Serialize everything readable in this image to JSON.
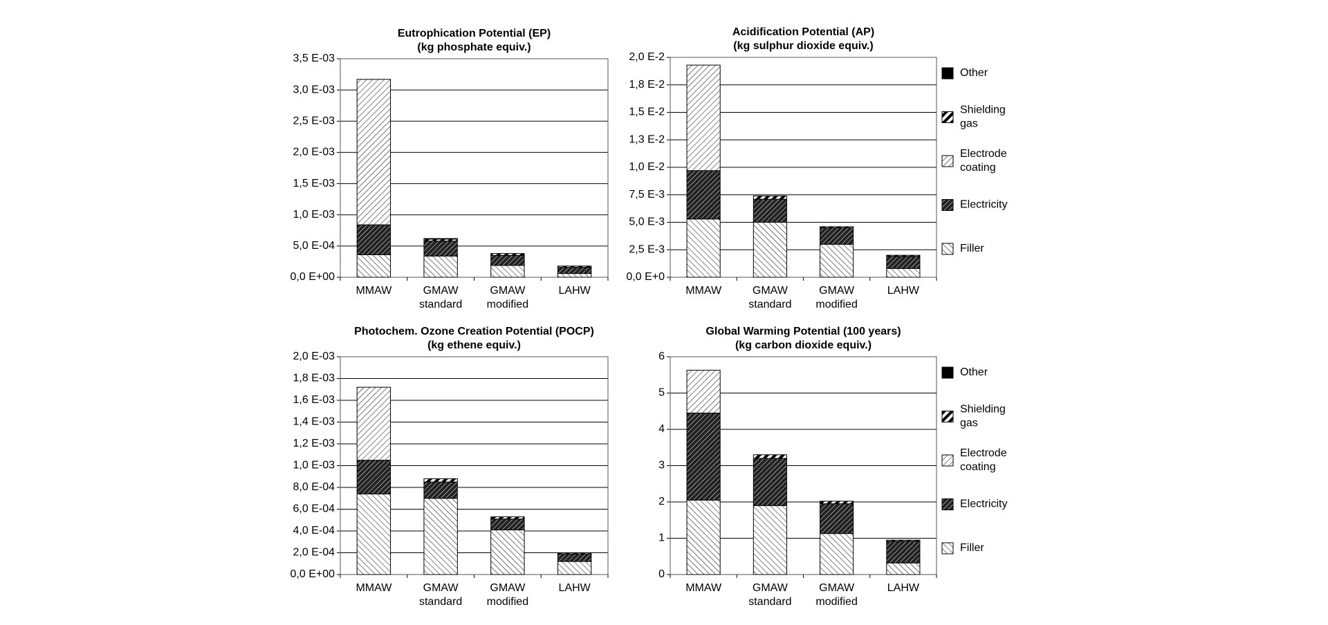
{
  "chart_data": [
    {
      "type": "bar",
      "stacked": true,
      "title": "Eutrophication Potential (EP)",
      "subtitle": "(kg phosphate equiv.)",
      "categories": [
        "MMAW",
        "GMAW standard",
        "GMAW modified",
        "LAHW"
      ],
      "ylim": [
        0,
        0.0035
      ],
      "yticks": [
        {
          "value": 0,
          "label": "0,0 E+00"
        },
        {
          "value": 0.0005,
          "label": "5,0 E-04"
        },
        {
          "value": 0.001,
          "label": "1,0 E-03"
        },
        {
          "value": 0.0015,
          "label": "1,5 E-03"
        },
        {
          "value": 0.002,
          "label": "2,0 E-03"
        },
        {
          "value": 0.0025,
          "label": "2,5 E-03"
        },
        {
          "value": 0.003,
          "label": "3,0 E-03"
        },
        {
          "value": 0.0035,
          "label": "3,5 E-03"
        }
      ],
      "grid": true,
      "series": [
        {
          "color": "#000000",
          "pattern": "back-hatch",
          "values": [
            0.00036,
            0.00034,
            0.00019,
            6e-05
          ]
        },
        {
          "color": "#000000",
          "pattern": "dark-hatch",
          "values": [
            0.00048,
            0.00024,
            0.00016,
            0.0001
          ]
        },
        {
          "color": "#000000",
          "pattern": "fore-hatch",
          "values": [
            0.00233,
            0,
            0,
            0
          ]
        },
        {
          "color": "#000000",
          "pattern": "wide-stripe",
          "values": [
            0,
            3e-05,
            3e-05,
            2e-05
          ]
        },
        {
          "color": "#000000",
          "pattern": "solid",
          "values": [
            0,
            1e-05,
            0,
            0
          ]
        }
      ]
    },
    {
      "type": "bar",
      "stacked": true,
      "title": "Acidification Potential (AP)",
      "subtitle": "(kg sulphur dioxide equiv.)",
      "categories": [
        "MMAW",
        "GMAW standard",
        "GMAW modified",
        "LAHW"
      ],
      "ylim": [
        0,
        0.02
      ],
      "yticks": [
        {
          "value": 0,
          "label": "0,0 E+0"
        },
        {
          "value": 0.0025,
          "label": "2,5 E-3"
        },
        {
          "value": 0.005,
          "label": "5,0 E-3"
        },
        {
          "value": 0.0075,
          "label": "7,5 E-3"
        },
        {
          "value": 0.01,
          "label": "1,0 E-2"
        },
        {
          "value": 0.0125,
          "label": "1,3 E-2"
        },
        {
          "value": 0.015,
          "label": "1,5 E-2"
        },
        {
          "value": 0.0175,
          "label": "1,8 E-2"
        },
        {
          "value": 0.02,
          "label": "2,0 E-2"
        }
      ],
      "grid": true,
      "legend": "right",
      "series": [
        {
          "name": "Filler",
          "color": "#000000",
          "pattern": "back-hatch",
          "values": [
            0.0053,
            0.005,
            0.003,
            0.0008
          ]
        },
        {
          "name": "Electricity",
          "color": "#000000",
          "pattern": "dark-hatch",
          "values": [
            0.0044,
            0.0021,
            0.0015,
            0.0011
          ]
        },
        {
          "name": "Electrode coating",
          "color": "#000000",
          "pattern": "fore-hatch",
          "values": [
            0.0096,
            0,
            0,
            0
          ]
        },
        {
          "name": "Shielding gas",
          "color": "#000000",
          "pattern": "wide-stripe",
          "values": [
            0,
            0.0003,
            0.0001,
            0.0001
          ]
        },
        {
          "name": "Other",
          "color": "#000000",
          "pattern": "solid",
          "values": [
            0,
            0,
            0,
            0
          ]
        }
      ]
    },
    {
      "type": "bar",
      "stacked": true,
      "title": "Photochem. Ozone Creation Potential (POCP)",
      "subtitle": "(kg ethene equiv.)",
      "categories": [
        "MMAW",
        "GMAW standard",
        "GMAW modified",
        "LAHW"
      ],
      "ylim": [
        0,
        0.002
      ],
      "yticks": [
        {
          "value": 0,
          "label": "0,0 E+00"
        },
        {
          "value": 0.0002,
          "label": "2,0 E-04"
        },
        {
          "value": 0.0004,
          "label": "4,0 E-04"
        },
        {
          "value": 0.0006,
          "label": "6,0 E-04"
        },
        {
          "value": 0.0008,
          "label": "8,0 E-04"
        },
        {
          "value": 0.001,
          "label": "1,0 E-03"
        },
        {
          "value": 0.0012,
          "label": "1,2 E-03"
        },
        {
          "value": 0.0014,
          "label": "1,4 E-03"
        },
        {
          "value": 0.0016,
          "label": "1,6 E-03"
        },
        {
          "value": 0.0018,
          "label": "1,8 E-03"
        },
        {
          "value": 0.002,
          "label": "2,0 E-03"
        }
      ],
      "grid": true,
      "series": [
        {
          "color": "#000000",
          "pattern": "back-hatch",
          "values": [
            0.00074,
            0.0007,
            0.00041,
            0.00012
          ]
        },
        {
          "color": "#000000",
          "pattern": "dark-hatch",
          "values": [
            0.00031,
            0.00015,
            0.0001,
            7e-05
          ]
        },
        {
          "color": "#000000",
          "pattern": "fore-hatch",
          "values": [
            0.00067,
            0,
            0,
            0
          ]
        },
        {
          "color": "#000000",
          "pattern": "wide-stripe",
          "values": [
            0,
            3e-05,
            2e-05,
            1e-05
          ]
        },
        {
          "color": "#000000",
          "pattern": "solid",
          "values": [
            0,
            0,
            0,
            0
          ]
        }
      ]
    },
    {
      "type": "bar",
      "stacked": true,
      "title": "Global Warming Potential (100 years)",
      "subtitle": "(kg carbon dioxide equiv.)",
      "categories": [
        "MMAW",
        "GMAW standard",
        "GMAW modified",
        "LAHW"
      ],
      "ylim": [
        0,
        6
      ],
      "yticks": [
        0,
        1,
        2,
        3,
        4,
        5,
        6
      ],
      "grid": true,
      "legend": "right",
      "series": [
        {
          "name": "Filler",
          "color": "#000000",
          "pattern": "back-hatch",
          "values": [
            2.05,
            1.9,
            1.13,
            0.32
          ]
        },
        {
          "name": "Electricity",
          "color": "#000000",
          "pattern": "dark-hatch",
          "values": [
            2.4,
            1.3,
            0.82,
            0.6
          ]
        },
        {
          "name": "Electrode coating",
          "color": "#000000",
          "pattern": "fore-hatch",
          "values": [
            1.18,
            0,
            0,
            0
          ]
        },
        {
          "name": "Shielding gas",
          "color": "#000000",
          "pattern": "wide-stripe",
          "values": [
            0,
            0.1,
            0.07,
            0.03
          ]
        },
        {
          "name": "Other",
          "color": "#000000",
          "pattern": "solid",
          "values": [
            0,
            0,
            0,
            0
          ]
        }
      ]
    }
  ]
}
